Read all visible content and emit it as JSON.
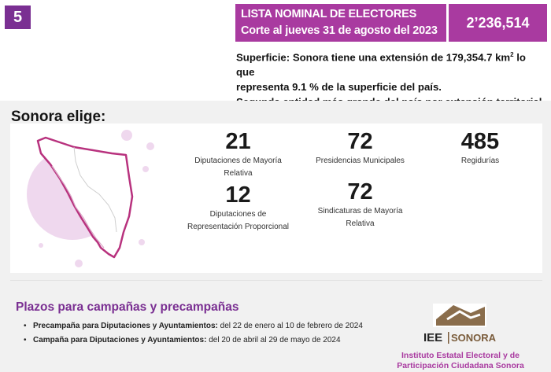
{
  "badge": {
    "number": "5"
  },
  "banner": {
    "title_line1": "LISTA NOMINAL DE ELECTORES",
    "title_line2": "Corte al jueves 31 de agosto del 2023",
    "total": "2’236,514"
  },
  "superficie": {
    "line1_pre": "Superficie: Sonora tiene una extensión de 179,354.7 km",
    "line1_sup": "2",
    "line1_post": " lo que",
    "line2": "representa 9.1 % de la superficie del país.",
    "line3": "Segunda entidad más grande del país por extensión territorial."
  },
  "section": {
    "title": "Sonora elige:"
  },
  "stats": [
    {
      "value": "21",
      "label_line1": "Diputaciones de Mayoría",
      "label_line2": "Relativa"
    },
    {
      "value": "72",
      "label_line1": "Presidencias Municipales",
      "label_line2": ""
    },
    {
      "value": "485",
      "label_line1": "Regidurías",
      "label_line2": ""
    },
    {
      "value": "12",
      "label_line1": "Diputaciones de",
      "label_line2": "Representación Proporcional"
    },
    {
      "value": "72",
      "label_line1": "Sindicaturas de Mayoría",
      "label_line2": "Relativa"
    }
  ],
  "plazos": {
    "title": "Plazos para campañas y precampañas",
    "items": [
      {
        "bold": "Precampaña para Diputaciones y Ayuntamientos:",
        "text": " del 22 de enero al 10 de febrero de 2024"
      },
      {
        "bold": "Campaña para Diputaciones y Ayuntamientos:",
        "text": " del 20 de abril al 29 de mayo de 2024"
      }
    ]
  },
  "logo": {
    "text_left": "IEE",
    "text_right": "SONORA",
    "caption_line1": "Instituto Estatal Electoral y de",
    "caption_line2": "Participación Ciudadana Sonora"
  },
  "colors": {
    "purple_dark": "#7a2f92",
    "magenta": "#a93aa0",
    "pink_light": "#efd8ee",
    "map_outline": "#b8327e"
  }
}
